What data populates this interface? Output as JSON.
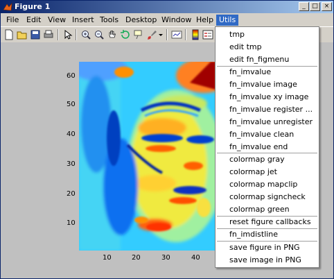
{
  "window": {
    "title": "Figure 1"
  },
  "menubar": {
    "items": [
      "File",
      "Edit",
      "View",
      "Insert",
      "Tools",
      "Desktop",
      "Window",
      "Help",
      "Utils"
    ]
  },
  "utils_menu": {
    "items": [
      "tmp",
      "edit tmp",
      "edit fn_figmenu",
      "fn_imvalue",
      "fn_imvalue image",
      "fn_imvalue xy image",
      "fn_imvalue register ...",
      "fn_imvalue unregister",
      "fn_imvalue clean",
      "fn_imvalue end",
      "colormap gray",
      "colormap jet",
      "colormap mapclip",
      "colormap signcheck",
      "colormap green",
      "reset figure callbacks",
      "fn_imdistline",
      "save figure in PNG",
      "save image in PNG"
    ]
  },
  "axes": {
    "y_ticks": [
      "60",
      "50",
      "40",
      "30",
      "20",
      "10"
    ],
    "x_ticks": [
      "10",
      "20",
      "30",
      "40"
    ]
  }
}
